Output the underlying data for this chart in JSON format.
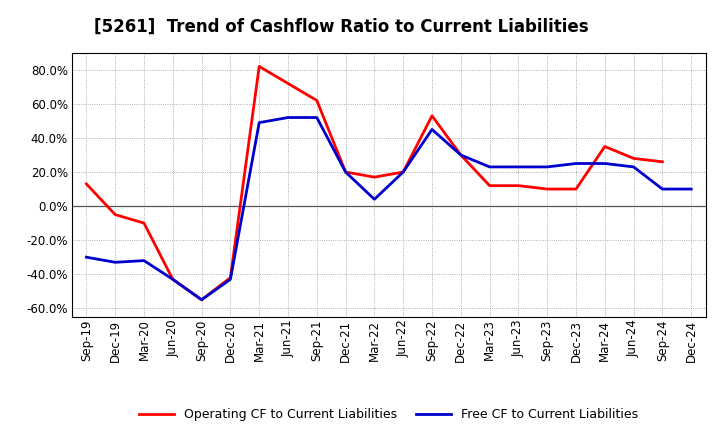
{
  "title": "[5261]  Trend of Cashflow Ratio to Current Liabilities",
  "x_labels": [
    "Sep-19",
    "Dec-19",
    "Mar-20",
    "Jun-20",
    "Sep-20",
    "Dec-20",
    "Mar-21",
    "Jun-21",
    "Sep-21",
    "Dec-21",
    "Mar-22",
    "Jun-22",
    "Sep-22",
    "Dec-22",
    "Mar-23",
    "Jun-23",
    "Sep-23",
    "Dec-23",
    "Mar-24",
    "Jun-24",
    "Sep-24",
    "Dec-24"
  ],
  "operating_cf": [
    0.13,
    -0.05,
    -0.1,
    -0.43,
    -0.55,
    -0.42,
    0.82,
    0.72,
    0.62,
    0.2,
    0.17,
    0.2,
    0.53,
    0.3,
    0.12,
    0.12,
    0.1,
    0.1,
    0.35,
    0.28,
    0.26,
    null
  ],
  "free_cf": [
    -0.3,
    -0.33,
    -0.32,
    -0.43,
    -0.55,
    -0.43,
    0.49,
    0.52,
    0.52,
    0.2,
    0.04,
    0.2,
    0.45,
    0.3,
    0.23,
    0.23,
    0.23,
    0.25,
    0.25,
    0.23,
    0.1,
    0.1
  ],
  "ylim": [
    -0.65,
    0.9
  ],
  "yticks": [
    -0.6,
    -0.4,
    -0.2,
    0.0,
    0.2,
    0.4,
    0.6,
    0.8
  ],
  "operating_color": "#ff0000",
  "free_color": "#0000cc",
  "background_color": "#ffffff",
  "plot_bg_color": "#ffffff",
  "grid_color": "#999999",
  "legend_operating": "Operating CF to Current Liabilities",
  "legend_free": "Free CF to Current Liabilities",
  "title_fontsize": 12,
  "axis_fontsize": 8.5,
  "legend_fontsize": 9,
  "line_width": 2.0
}
